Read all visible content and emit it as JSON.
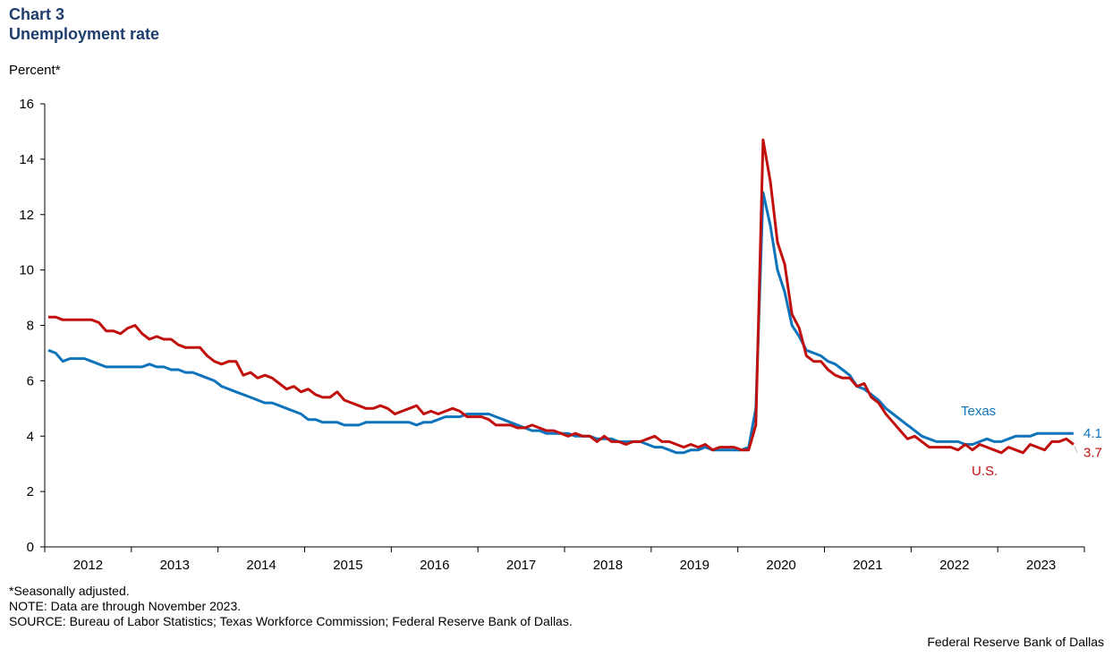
{
  "header": {
    "chart_number": "Chart 3",
    "title": "Unemployment rate"
  },
  "footnotes": {
    "adjusted": "*Seasonally adjusted.",
    "note": "NOTE: Data are through November 2023.",
    "source": "SOURCE: Bureau of Labor Statistics; Texas Workforce Commission; Federal Reserve Bank of Dallas."
  },
  "credit": "Federal Reserve Bank of Dallas",
  "chart_data": {
    "type": "line",
    "title": "Unemployment rate",
    "ylabel": "Percent*",
    "ylim": [
      0,
      16
    ],
    "yticks": [
      0,
      2,
      4,
      6,
      8,
      10,
      12,
      14,
      16
    ],
    "x_tick_labels": [
      "2012",
      "2013",
      "2014",
      "2015",
      "2016",
      "2017",
      "2018",
      "2019",
      "2020",
      "2021",
      "2022",
      "2023"
    ],
    "x_start": "2012-01",
    "x_end": "2023-11",
    "frequency": "monthly",
    "grid": false,
    "series": [
      {
        "name": "Texas",
        "color": "#0d74bc",
        "end_label": "4.1",
        "values": [
          7.1,
          7.0,
          6.7,
          6.8,
          6.8,
          6.8,
          6.7,
          6.6,
          6.5,
          6.5,
          6.5,
          6.5,
          6.5,
          6.5,
          6.6,
          6.5,
          6.5,
          6.4,
          6.4,
          6.3,
          6.3,
          6.2,
          6.1,
          6.0,
          5.8,
          5.7,
          5.6,
          5.5,
          5.4,
          5.3,
          5.2,
          5.2,
          5.1,
          5.0,
          4.9,
          4.8,
          4.6,
          4.6,
          4.5,
          4.5,
          4.5,
          4.4,
          4.4,
          4.4,
          4.5,
          4.5,
          4.5,
          4.5,
          4.5,
          4.5,
          4.5,
          4.4,
          4.5,
          4.5,
          4.6,
          4.7,
          4.7,
          4.7,
          4.8,
          4.8,
          4.8,
          4.8,
          4.7,
          4.6,
          4.5,
          4.4,
          4.3,
          4.2,
          4.2,
          4.1,
          4.1,
          4.1,
          4.1,
          4.0,
          4.0,
          4.0,
          3.9,
          3.9,
          3.9,
          3.8,
          3.8,
          3.8,
          3.8,
          3.7,
          3.6,
          3.6,
          3.5,
          3.4,
          3.4,
          3.5,
          3.5,
          3.6,
          3.5,
          3.5,
          3.5,
          3.5,
          3.5,
          3.6,
          5.0,
          12.8,
          11.6,
          10.0,
          9.2,
          8.0,
          7.6,
          7.1,
          7.0,
          6.9,
          6.7,
          6.6,
          6.4,
          6.2,
          5.8,
          5.7,
          5.5,
          5.3,
          5.0,
          4.8,
          4.6,
          4.4,
          4.2,
          4.0,
          3.9,
          3.8,
          3.8,
          3.8,
          3.8,
          3.7,
          3.7,
          3.8,
          3.9,
          3.8,
          3.8,
          3.9,
          4.0,
          4.0,
          4.0,
          4.1,
          4.1,
          4.1,
          4.1,
          4.1,
          4.1
        ]
      },
      {
        "name": "U.S.",
        "color": "#c00f0c",
        "end_label": "3.7",
        "values": [
          8.3,
          8.3,
          8.2,
          8.2,
          8.2,
          8.2,
          8.2,
          8.1,
          7.8,
          7.8,
          7.7,
          7.9,
          8.0,
          7.7,
          7.5,
          7.6,
          7.5,
          7.5,
          7.3,
          7.2,
          7.2,
          7.2,
          6.9,
          6.7,
          6.6,
          6.7,
          6.7,
          6.2,
          6.3,
          6.1,
          6.2,
          6.1,
          5.9,
          5.7,
          5.8,
          5.6,
          5.7,
          5.5,
          5.4,
          5.4,
          5.6,
          5.3,
          5.2,
          5.1,
          5.0,
          5.0,
          5.1,
          5.0,
          4.8,
          4.9,
          5.0,
          5.1,
          4.8,
          4.9,
          4.8,
          4.9,
          5.0,
          4.9,
          4.7,
          4.7,
          4.7,
          4.6,
          4.4,
          4.4,
          4.4,
          4.3,
          4.3,
          4.4,
          4.3,
          4.2,
          4.2,
          4.1,
          4.0,
          4.1,
          4.0,
          4.0,
          3.8,
          4.0,
          3.8,
          3.8,
          3.7,
          3.8,
          3.8,
          3.9,
          4.0,
          3.8,
          3.8,
          3.7,
          3.6,
          3.7,
          3.6,
          3.7,
          3.5,
          3.6,
          3.6,
          3.6,
          3.5,
          3.5,
          4.4,
          14.7,
          13.2,
          11.0,
          10.2,
          8.4,
          7.9,
          6.9,
          6.7,
          6.7,
          6.4,
          6.2,
          6.1,
          6.1,
          5.8,
          5.9,
          5.4,
          5.2,
          4.8,
          4.5,
          4.2,
          3.9,
          4.0,
          3.8,
          3.6,
          3.6,
          3.6,
          3.6,
          3.5,
          3.7,
          3.5,
          3.7,
          3.6,
          3.5,
          3.4,
          3.6,
          3.5,
          3.4,
          3.7,
          3.6,
          3.5,
          3.8,
          3.8,
          3.9,
          3.7
        ]
      }
    ],
    "annotations": [
      {
        "text": "Texas",
        "series": "Texas"
      },
      {
        "text": "U.S.",
        "series": "U.S."
      }
    ]
  }
}
